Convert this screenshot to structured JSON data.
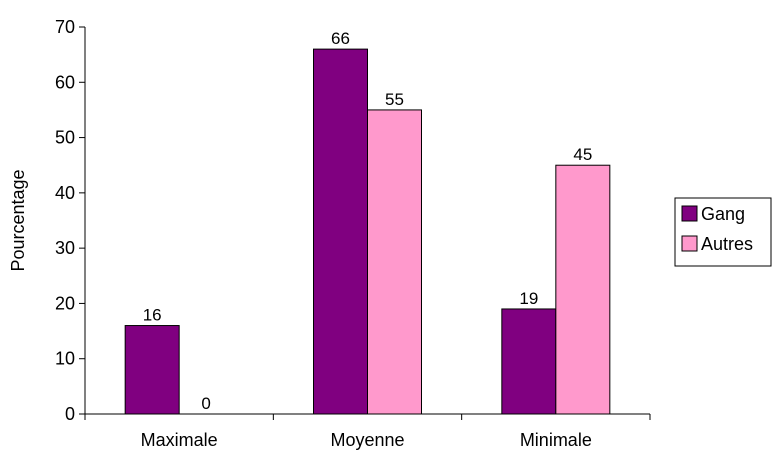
{
  "chart_data": {
    "type": "bar",
    "title": "",
    "xlabel": "",
    "ylabel": "Pourcentage",
    "ylim": [
      0,
      70
    ],
    "yticks": [
      0,
      10,
      20,
      30,
      40,
      50,
      60,
      70
    ],
    "categories": [
      "Maximale",
      "Moyenne",
      "Minimale"
    ],
    "series": [
      {
        "name": "Gang",
        "values": [
          16,
          66,
          19
        ],
        "color": "#800080"
      },
      {
        "name": "Autres",
        "values": [
          0,
          55,
          45
        ],
        "color": "#ff99cc"
      }
    ],
    "data_labels": true,
    "grid": false,
    "legend": "right"
  }
}
